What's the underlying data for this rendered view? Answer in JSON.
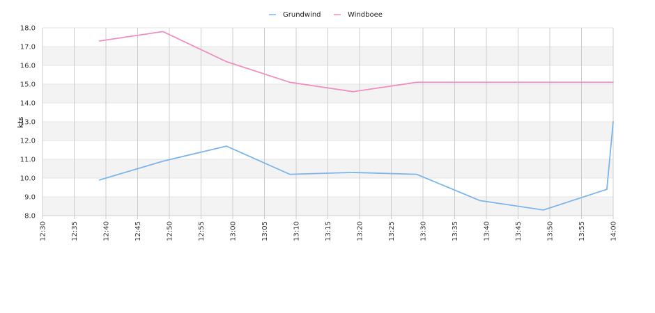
{
  "chart_data": {
    "type": "line",
    "title": "",
    "xlabel": "",
    "ylabel": "kts",
    "ylim": [
      8.0,
      18.0
    ],
    "y_ticks": [
      "8.0",
      "9.0",
      "10.0",
      "11.0",
      "12.0",
      "13.0",
      "14.0",
      "15.0",
      "16.0",
      "17.0",
      "18.0"
    ],
    "x_ticks": [
      "12:30",
      "12:35",
      "12:40",
      "12:45",
      "12:50",
      "12:55",
      "13:00",
      "13:05",
      "13:10",
      "13:15",
      "13:20",
      "13:25",
      "13:30",
      "13:35",
      "13:40",
      "13:45",
      "13:50",
      "13:55",
      "14:00"
    ],
    "xlim": [
      "12:30",
      "14:00"
    ],
    "grid": true,
    "legend_position": "top-center",
    "series": [
      {
        "name": "Grundwind",
        "color": "#7cb5ec",
        "points": [
          [
            "12:39",
            9.9
          ],
          [
            "12:49",
            10.9
          ],
          [
            "12:59",
            11.7
          ],
          [
            "13:09",
            10.2
          ],
          [
            "13:19",
            10.3
          ],
          [
            "13:29",
            10.2
          ],
          [
            "13:39",
            8.8
          ],
          [
            "13:49",
            8.3
          ],
          [
            "13:59",
            9.4
          ],
          [
            "14:00",
            13.0
          ]
        ]
      },
      {
        "name": "Windboee",
        "color": "#f08fc0",
        "points": [
          [
            "12:39",
            17.3
          ],
          [
            "12:49",
            17.8
          ],
          [
            "12:59",
            16.2
          ],
          [
            "13:09",
            15.1
          ],
          [
            "13:19",
            14.6
          ],
          [
            "13:29",
            15.1
          ],
          [
            "13:39",
            15.1
          ],
          [
            "13:49",
            15.1
          ],
          [
            "13:59",
            15.1
          ],
          [
            "14:00",
            15.1
          ]
        ]
      }
    ]
  }
}
